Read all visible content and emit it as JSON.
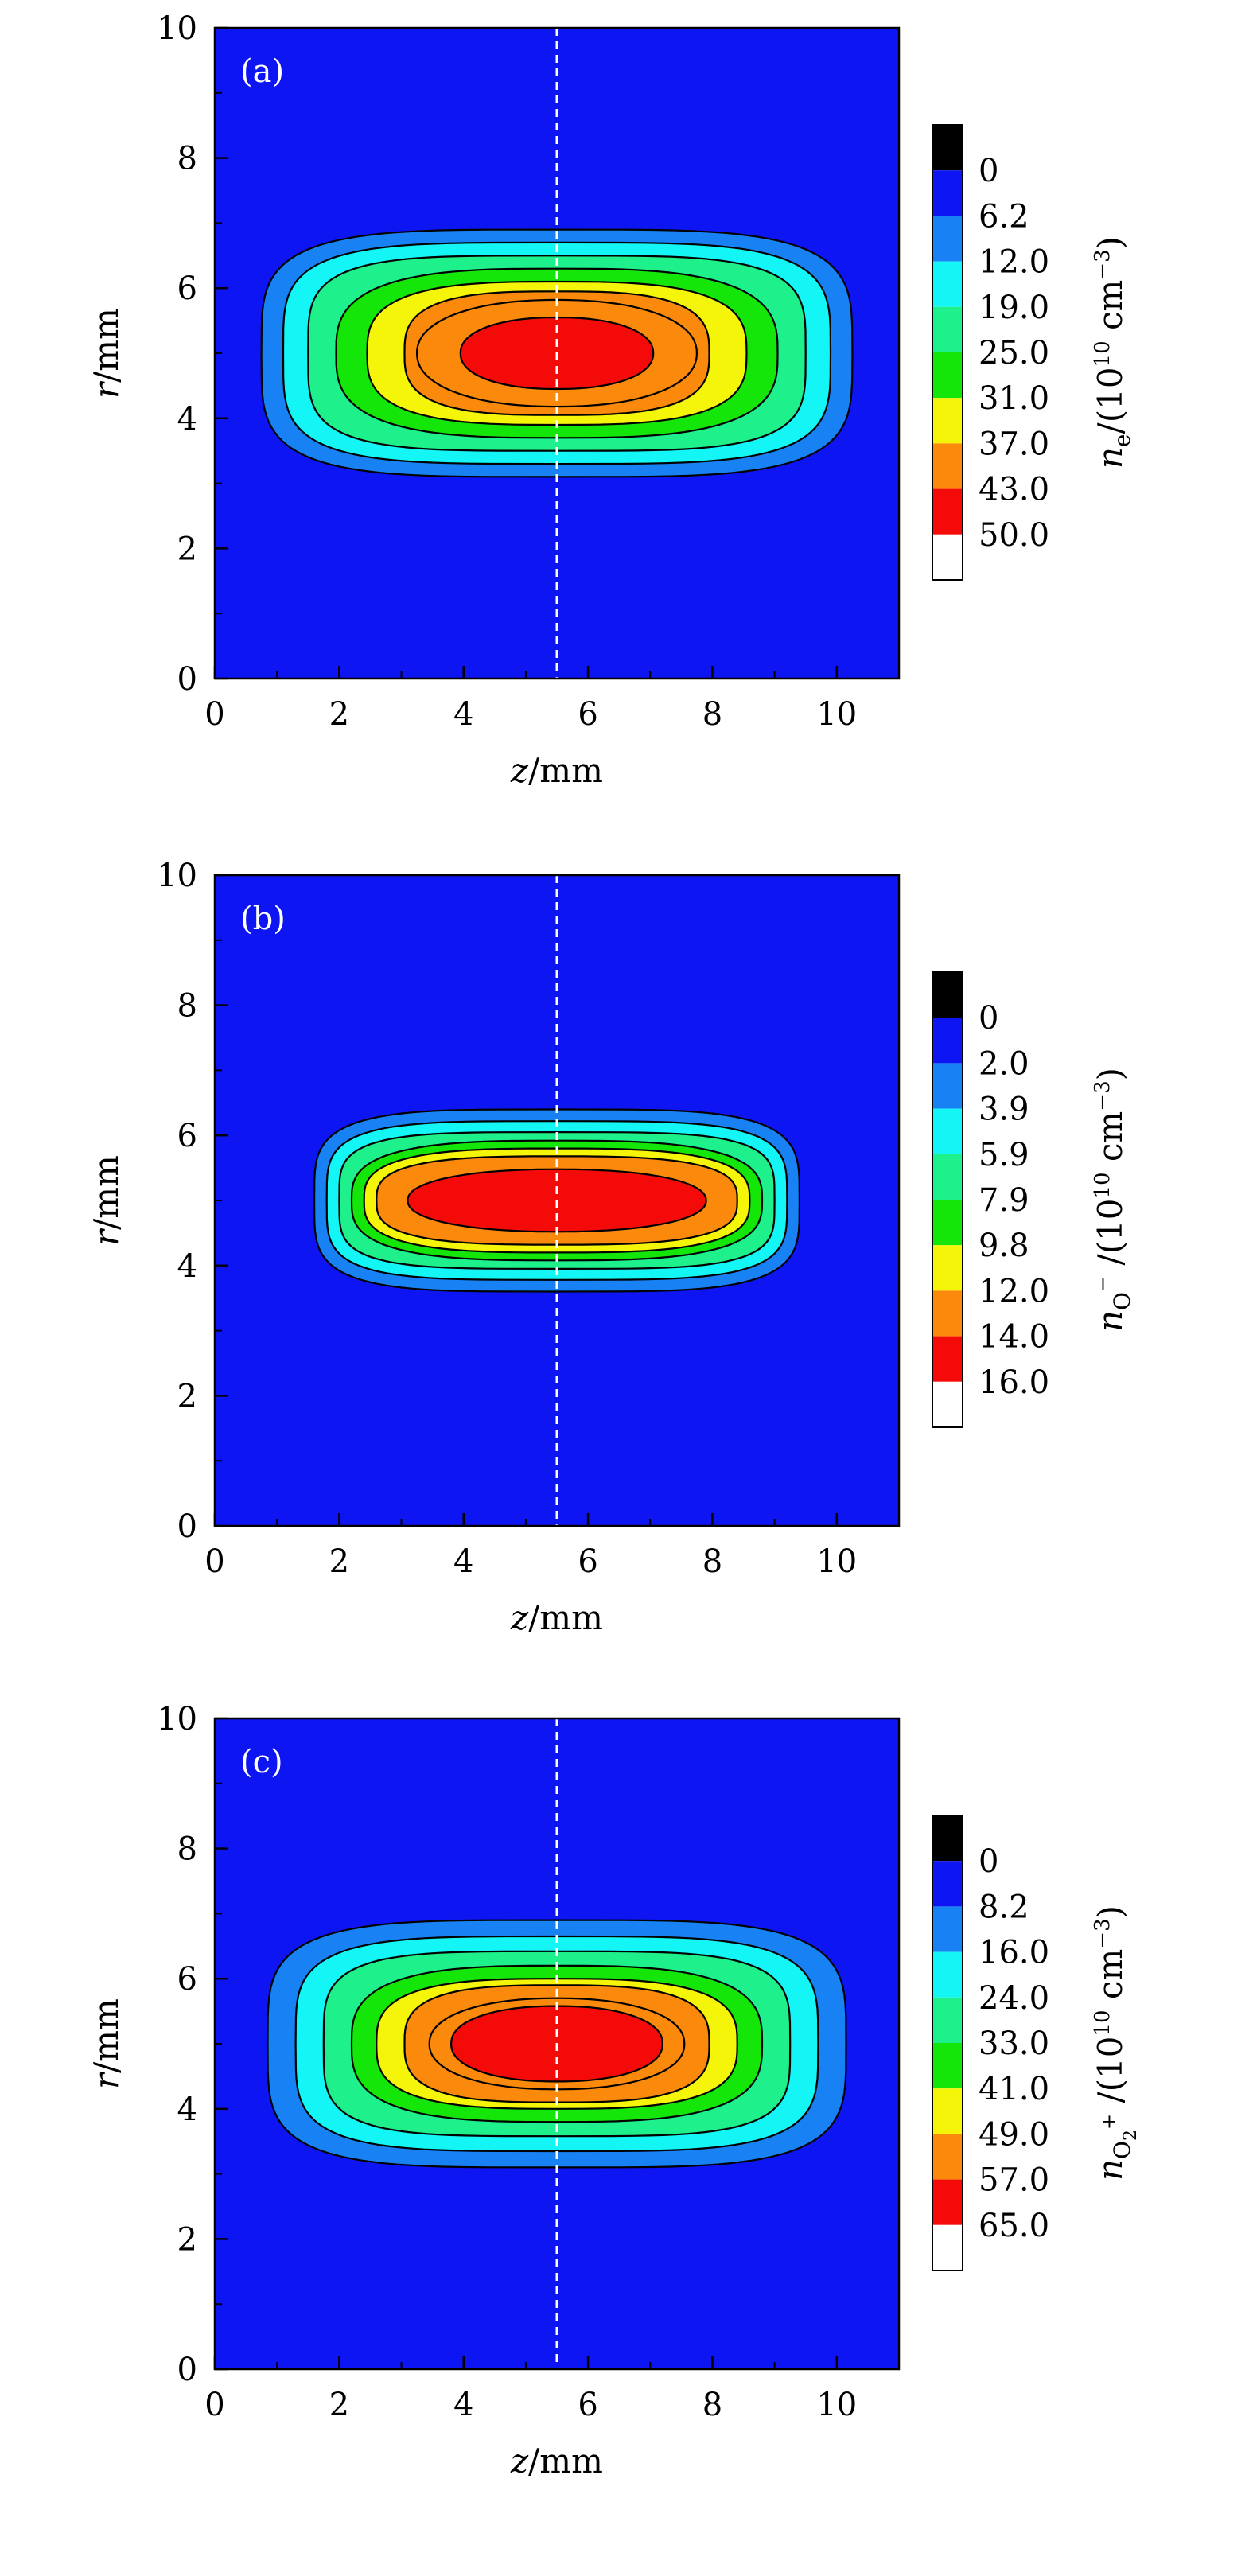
{
  "chart_data": [
    {
      "type": "heatmap",
      "panel_label": "(a)",
      "xlabel": {
        "var": "z",
        "unit": "/mm"
      },
      "ylabel": {
        "var": "r",
        "unit": "/mm"
      },
      "xlim": [
        0,
        11
      ],
      "ylim": [
        0,
        10
      ],
      "xticks": [
        "0",
        "2",
        "4",
        "6",
        "8",
        "10"
      ],
      "yticks": [
        "0",
        "2",
        "4",
        "6",
        "8",
        "10"
      ],
      "dashed_line_z": 5.5,
      "center": {
        "z": 5.5,
        "r": 5.0
      },
      "contours": [
        {
          "level": 6.2,
          "hz": 4.75,
          "hr": 1.9
        },
        {
          "level": 12.0,
          "hz": 4.4,
          "hr": 1.7
        },
        {
          "level": 19.0,
          "hz": 4.0,
          "hr": 1.5
        },
        {
          "level": 25.0,
          "hz": 3.55,
          "hr": 1.3
        },
        {
          "level": 31.0,
          "hz": 3.05,
          "hr": 1.1
        },
        {
          "level": 37.0,
          "hz": 2.45,
          "hr": 0.95
        },
        {
          "level": 43.0,
          "hz": 2.25,
          "hr": 0.82
        },
        {
          "level": 50.0,
          "hz": 1.55,
          "hr": 0.55
        }
      ],
      "colorbar": {
        "label": {
          "sym": "n",
          "sub": "e",
          "sup": "",
          "text": "/(10",
          "exp": "10",
          "unit": " cm",
          "uexp": "−3",
          "close": ")"
        },
        "ticks": [
          "0",
          "6.2",
          "12.0",
          "19.0",
          "25.0",
          "31.0",
          "37.0",
          "43.0",
          "50.0"
        ]
      }
    },
    {
      "type": "heatmap",
      "panel_label": "(b)",
      "xlabel": {
        "var": "z",
        "unit": "/mm"
      },
      "ylabel": {
        "var": "r",
        "unit": "/mm"
      },
      "xlim": [
        0,
        11
      ],
      "ylim": [
        0,
        10
      ],
      "xticks": [
        "0",
        "2",
        "4",
        "6",
        "8",
        "10"
      ],
      "yticks": [
        "0",
        "2",
        "4",
        "6",
        "8",
        "10"
      ],
      "dashed_line_z": 5.5,
      "center": {
        "z": 5.5,
        "r": 5.0
      },
      "contours": [
        {
          "level": 2.0,
          "hz": 3.9,
          "hr": 1.4
        },
        {
          "level": 3.9,
          "hz": 3.7,
          "hr": 1.22
        },
        {
          "level": 5.9,
          "hz": 3.5,
          "hr": 1.05
        },
        {
          "level": 7.9,
          "hz": 3.3,
          "hr": 0.92
        },
        {
          "level": 9.8,
          "hz": 3.1,
          "hr": 0.8
        },
        {
          "level": 12.0,
          "hz": 2.9,
          "hr": 0.68
        },
        {
          "level": 14.0,
          "hz": 2.4,
          "hr": 0.48
        }
      ],
      "colorbar": {
        "label": {
          "sym": "n",
          "sub": "O",
          "subsup": "−",
          "sup": "",
          "text": " /(10",
          "exp": "10",
          "unit": " cm",
          "uexp": "−3",
          "close": ")"
        },
        "ticks": [
          "0",
          "2.0",
          "3.9",
          "5.9",
          "7.9",
          "9.8",
          "12.0",
          "14.0",
          "16.0"
        ]
      }
    },
    {
      "type": "heatmap",
      "panel_label": "(c)",
      "xlabel": {
        "var": "z",
        "unit": "/mm"
      },
      "ylabel": {
        "var": "r",
        "unit": "/mm"
      },
      "xlim": [
        0,
        11
      ],
      "ylim": [
        0,
        10
      ],
      "xticks": [
        "0",
        "2",
        "4",
        "6",
        "8",
        "10"
      ],
      "yticks": [
        "0",
        "2",
        "4",
        "6",
        "8",
        "10"
      ],
      "dashed_line_z": 5.5,
      "center": {
        "z": 5.5,
        "r": 5.0
      },
      "contours": [
        {
          "level": 8.2,
          "hz": 4.65,
          "hr": 1.9
        },
        {
          "level": 16.0,
          "hz": 4.2,
          "hr": 1.65
        },
        {
          "level": 24.0,
          "hz": 3.75,
          "hr": 1.42
        },
        {
          "level": 33.0,
          "hz": 3.3,
          "hr": 1.2
        },
        {
          "level": 41.0,
          "hz": 2.9,
          "hr": 1.0
        },
        {
          "level": 49.0,
          "hz": 2.45,
          "hr": 0.9
        },
        {
          "level": 57.0,
          "hz": 2.05,
          "hr": 0.7
        },
        {
          "level": 65.0,
          "hz": 1.7,
          "hr": 0.58
        }
      ],
      "colorbar": {
        "label": {
          "sym": "n",
          "sub": "O",
          "subsub": "2",
          "subsup": "+",
          "sup": "",
          "text": " /(10",
          "exp": "10",
          "unit": " cm",
          "uexp": "−3",
          "close": ")"
        },
        "ticks": [
          "0",
          "8.2",
          "16.0",
          "24.0",
          "33.0",
          "41.0",
          "49.0",
          "57.0",
          "65.0"
        ]
      }
    }
  ],
  "colors": {
    "background": "#0d16f2",
    "swatches": [
      "#000000",
      "#0d16f2",
      "#1882f5",
      "#14f5f5",
      "#1ef08c",
      "#14e60a",
      "#f5f50a",
      "#fb8a0c",
      "#f50a0a",
      "#ffffff"
    ],
    "contour_fills": [
      "#1882f5",
      "#14f5f5",
      "#1ef08c",
      "#14e60a",
      "#f5f50a",
      "#fb8a0c",
      "#fb8a0c",
      "#f50a0a"
    ],
    "contour_fills_b": [
      "#1882f5",
      "#14f5f5",
      "#1ef08c",
      "#14e60a",
      "#f5f50a",
      "#fb8a0c",
      "#f50a0a"
    ],
    "dashed_line": "#ffffff"
  }
}
